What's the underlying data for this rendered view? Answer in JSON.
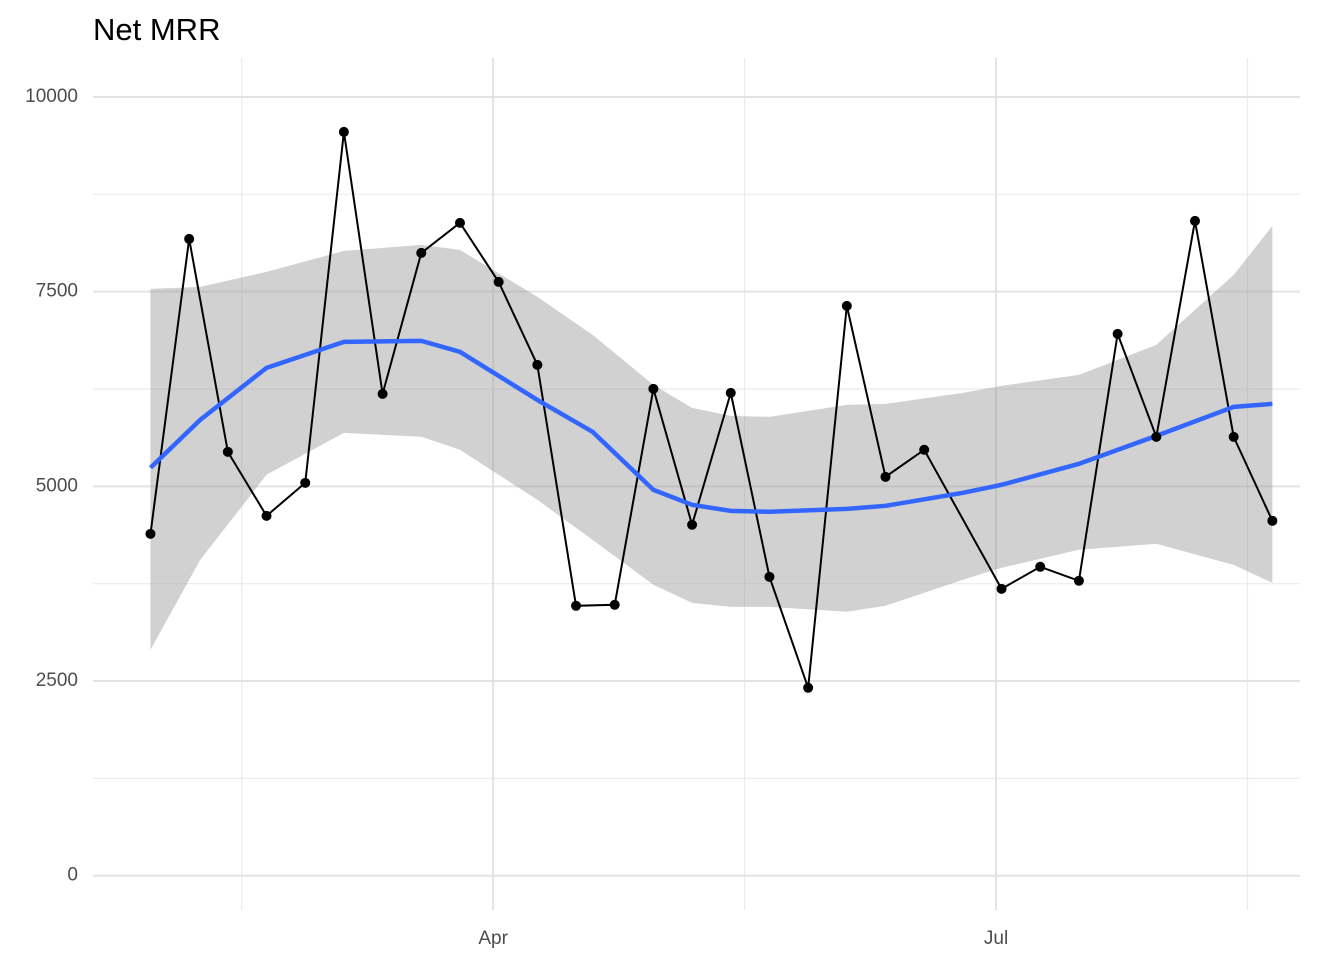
{
  "chart_data": {
    "type": "line",
    "title": "Net MRR",
    "x": [
      29,
      36,
      43,
      50,
      57,
      64,
      71,
      78,
      85,
      92,
      99,
      106,
      113,
      120,
      127,
      134,
      141,
      148,
      155,
      162,
      169,
      183,
      190,
      197,
      204,
      211,
      218,
      225,
      232
    ],
    "series": [
      {
        "color": "#000000",
        "values": [
          4390,
          8177,
          5443,
          4621,
          5045,
          9551,
          6187,
          7997,
          8383,
          7625,
          6560,
          3466,
          3479,
          6252,
          4506,
          6200,
          3838,
          2413,
          7317,
          5122,
          5469,
          3684,
          3967,
          3787,
          6958,
          5635,
          8408,
          5635,
          4557
        ]
      }
    ],
    "smooth": {
      "color": "#3366ff",
      "band_color": "#999999",
      "x": [
        29,
        38,
        50,
        64,
        78,
        85,
        99,
        109,
        120,
        127,
        134,
        141,
        155,
        162,
        176,
        183,
        197,
        211,
        225,
        232
      ],
      "values": [
        5238,
        5854,
        6521,
        6855,
        6868,
        6727,
        6110,
        5700,
        4955,
        4763,
        4685,
        4673,
        4711,
        4750,
        4917,
        5019,
        5289,
        5648,
        6020,
        6059
      ],
      "lower": [
        2901,
        4056,
        5148,
        5687,
        5636,
        5469,
        4827,
        4313,
        3736,
        3504,
        3453,
        3453,
        3389,
        3466,
        3800,
        3954,
        4185,
        4262,
        3992,
        3761
      ],
      "upper": [
        7535,
        7561,
        7754,
        8023,
        8100,
        8036,
        7433,
        6945,
        6303,
        6008,
        5905,
        5892,
        6046,
        6059,
        6200,
        6290,
        6431,
        6816,
        7715,
        8344
      ]
    },
    "xlim": [
      18.6,
      237
    ],
    "ylim": [
      -440,
      10500
    ],
    "xticks": [
      {
        "value": 91,
        "label": "Apr"
      },
      {
        "value": 182,
        "label": "Jul"
      }
    ],
    "yticks": [
      0,
      2500,
      5000,
      7500,
      10000
    ],
    "grid": true,
    "minor_grid": true
  }
}
